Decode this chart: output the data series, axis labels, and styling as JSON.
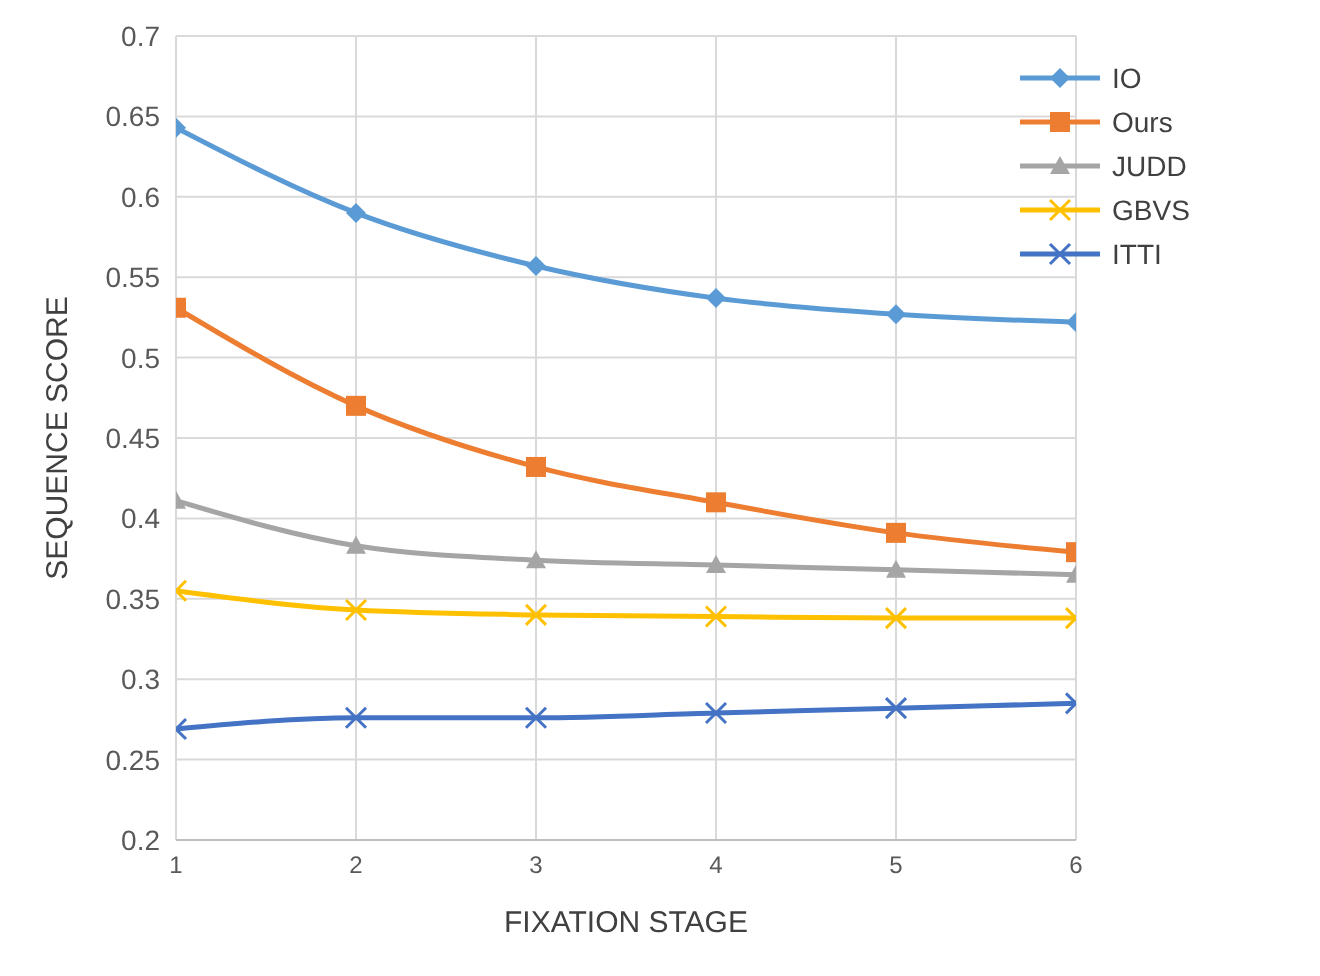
{
  "chart_data": {
    "type": "line",
    "xlabel": "FIXATION STAGE",
    "ylabel": "SEQUENCE SCORE",
    "x": [
      1,
      2,
      3,
      4,
      5,
      6
    ],
    "xlim": [
      1,
      6
    ],
    "xticks": [
      1,
      2,
      3,
      4,
      5,
      6
    ],
    "ylim": [
      0.2,
      0.7
    ],
    "yticks": [
      0.2,
      0.25,
      0.3,
      0.35,
      0.4,
      0.45,
      0.5,
      0.55,
      0.6,
      0.65,
      0.7
    ],
    "grid": true,
    "legend": "top right",
    "line_style": "solid",
    "series": [
      {
        "name": "IO",
        "color": "#5b9bd5",
        "marker": "diamond",
        "values": [
          0.643,
          0.59,
          0.557,
          0.537,
          0.527,
          0.522
        ]
      },
      {
        "name": "Ours",
        "color": "#ed7d31",
        "marker": "square",
        "values": [
          0.531,
          0.47,
          0.432,
          0.41,
          0.391,
          0.379
        ]
      },
      {
        "name": "JUDD",
        "color": "#a5a5a5",
        "marker": "triangle",
        "values": [
          0.411,
          0.383,
          0.374,
          0.371,
          0.368,
          0.365
        ]
      },
      {
        "name": "GBVS",
        "color": "#ffc000",
        "marker": "cross",
        "values": [
          0.355,
          0.343,
          0.34,
          0.339,
          0.338,
          0.338
        ]
      },
      {
        "name": "ITTI",
        "color": "#4472c4",
        "marker": "cross",
        "values": [
          0.269,
          0.276,
          0.276,
          0.279,
          0.282,
          0.285
        ]
      }
    ]
  }
}
